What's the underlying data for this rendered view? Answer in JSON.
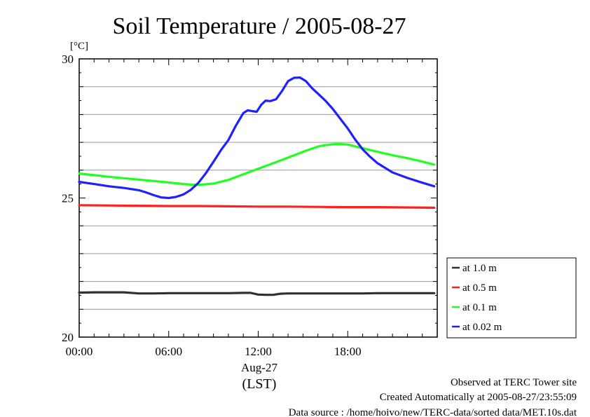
{
  "title": "Soil Temperature / 2005-08-27",
  "footer": {
    "line1": "Observed at TERC Tower site",
    "line2": "Created Automatically at 2005-08-27/23:55:09",
    "line3": "Data source : /home/hoivo/new/TERC-data/sorted  data/MET.10s.dat"
  },
  "chart_data": {
    "type": "line",
    "title": "Soil Temperature / 2005-08-27",
    "ylabel": "[°C]",
    "xlabel": "(LST)",
    "date_label": "Aug-27",
    "x_tick_labels": [
      "00:00",
      "06:00",
      "12:00",
      "18:00"
    ],
    "x_ticks": [
      0,
      6,
      12,
      18
    ],
    "xlim": [
      0,
      24
    ],
    "y_tick_labels": [
      "20",
      "25",
      "30"
    ],
    "y_ticks": [
      20,
      25,
      30
    ],
    "ylim": [
      20,
      30
    ],
    "grid": "horizontal",
    "legend_position": "right",
    "series": [
      {
        "name": "at 1.0 m",
        "color": "#303030",
        "x": [
          0,
          1,
          2,
          3,
          4,
          5,
          6,
          7,
          8,
          9,
          10,
          11,
          11.5,
          12,
          12.5,
          13,
          13.5,
          14,
          15,
          16,
          17,
          18,
          19,
          20,
          21,
          22,
          23.8
        ],
        "y": [
          21.6,
          21.61,
          21.61,
          21.61,
          21.57,
          21.57,
          21.58,
          21.58,
          21.58,
          21.58,
          21.58,
          21.59,
          21.59,
          21.53,
          21.52,
          21.52,
          21.56,
          21.57,
          21.57,
          21.57,
          21.57,
          21.57,
          21.57,
          21.58,
          21.58,
          21.58,
          21.58
        ]
      },
      {
        "name": "at 0.5 m",
        "color": "#ff2020",
        "x": [
          0,
          2,
          4,
          6,
          8,
          10,
          12,
          14,
          16,
          18,
          20,
          22,
          23.8
        ],
        "y": [
          24.74,
          24.73,
          24.72,
          24.71,
          24.71,
          24.7,
          24.69,
          24.69,
          24.68,
          24.67,
          24.67,
          24.66,
          24.65
        ]
      },
      {
        "name": "at 0.1 m",
        "color": "#20ff20",
        "x": [
          0,
          1,
          2,
          3,
          4,
          5,
          6,
          7,
          7.5,
          8,
          9,
          10,
          11,
          12,
          13,
          14,
          15,
          16,
          16.5,
          17,
          17.5,
          18,
          19,
          20,
          21,
          22,
          23,
          23.8
        ],
        "y": [
          25.88,
          25.82,
          25.76,
          25.71,
          25.66,
          25.61,
          25.56,
          25.5,
          25.48,
          25.47,
          25.52,
          25.65,
          25.85,
          26.05,
          26.25,
          26.45,
          26.66,
          26.85,
          26.9,
          26.93,
          26.94,
          26.92,
          26.79,
          26.66,
          26.54,
          26.43,
          26.31,
          26.2
        ]
      },
      {
        "name": "at 0.02 m",
        "color": "#2020ff",
        "x": [
          0,
          1,
          2,
          3,
          4,
          4.5,
          5,
          5.5,
          6,
          6.5,
          7,
          7.5,
          8,
          8.5,
          9,
          9.5,
          10,
          10.5,
          11,
          11.3,
          11.6,
          11.9,
          12.2,
          12.5,
          12.8,
          13.2,
          13.6,
          14,
          14.4,
          14.8,
          15.2,
          15.6,
          16,
          16.5,
          17,
          17.5,
          18,
          18.5,
          19,
          19.5,
          20,
          21,
          22,
          23,
          23.8
        ],
        "y": [
          25.58,
          25.5,
          25.42,
          25.36,
          25.28,
          25.2,
          25.1,
          25.02,
          25.0,
          25.04,
          25.13,
          25.3,
          25.55,
          25.9,
          26.3,
          26.72,
          27.08,
          27.6,
          28.05,
          28.15,
          28.12,
          28.1,
          28.35,
          28.5,
          28.48,
          28.55,
          28.85,
          29.2,
          29.32,
          29.33,
          29.2,
          28.95,
          28.75,
          28.5,
          28.2,
          27.85,
          27.5,
          27.1,
          26.75,
          26.48,
          26.25,
          25.92,
          25.72,
          25.55,
          25.42
        ]
      }
    ]
  }
}
